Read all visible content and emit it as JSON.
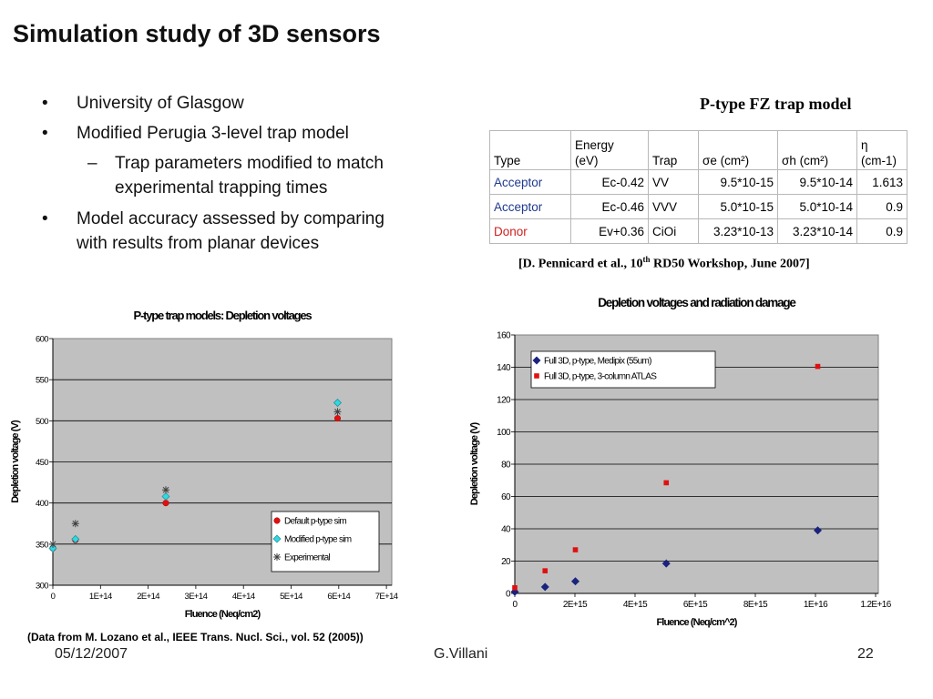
{
  "slide": {
    "title": "Simulation study of 3D sensors",
    "bullets": [
      {
        "marker": "•",
        "text": "University of Glasgow"
      },
      {
        "marker": "•",
        "text": "Modified Perugia 3-level trap model"
      },
      {
        "marker": "–",
        "text": "Trap parameters modified to match experimental trapping times",
        "level": 2
      },
      {
        "marker": "•",
        "text_lines": [
          "Model accuracy assessed by comparing",
          "with results from planar devices"
        ]
      }
    ],
    "data_note": "(Data from M. Lozano et al., IEEE Trans. Nucl. Sci., vol. 52 (2005))"
  },
  "trap_model": {
    "heading": "P-type FZ trap model",
    "headers": {
      "type": "Type",
      "energy_line1": "Energy",
      "energy_line2": "(eV)",
      "trap": "Trap",
      "sigma_e": "σe (cm²)",
      "sigma_h": "σh (cm²)",
      "eta_line1": "η",
      "eta_line2": "(cm-1)"
    },
    "rows": [
      {
        "type": "Acceptor",
        "type_color": "#1f3a8f",
        "energy": "Ec-0.42",
        "trap": "VV",
        "sigma_e": "9.5*10-15",
        "sigma_h": "9.5*10-14",
        "eta": "1.613"
      },
      {
        "type": "Acceptor",
        "type_color": "#1f3a8f",
        "energy": "Ec-0.46",
        "trap": "VVV",
        "sigma_e": "5.0*10-15",
        "sigma_h": "5.0*10-14",
        "eta": "0.9"
      },
      {
        "type": "Donor",
        "type_color": "#d02020",
        "energy": "Ev+0.36",
        "trap": "CiOi",
        "sigma_e": "3.23*10-13",
        "sigma_h": "3.23*10-14",
        "eta": "0.9"
      }
    ],
    "citation_pre": "[D. Pennicard et al., 10",
    "citation_sup": "th",
    "citation_post": " RD50 Workshop, June 2007]"
  },
  "footer": {
    "date": "05/12/2007",
    "author": "G.Villani",
    "page": "22"
  },
  "chart_data": [
    {
      "type": "scatter",
      "title": "P-type trap models: Depletion voltages",
      "xlabel": "Fluence (Neq/cm2)",
      "ylabel": "Depletion voltage (V)",
      "xlim": [
        0,
        750000000000000.0
      ],
      "ylim": [
        300,
        600
      ],
      "xticks": [
        "0",
        "1E+14",
        "2E+14",
        "3E+14",
        "4E+14",
        "5E+14",
        "6E+14",
        "7E+14"
      ],
      "yticks": [
        "300",
        "350",
        "400",
        "450",
        "500",
        "550",
        "600"
      ],
      "grid": true,
      "legend_position": "bottom-right",
      "series": [
        {
          "name": "Default p-type sim",
          "color": "#e01010",
          "marker": "circle",
          "x": [
            0,
            50000000000000.0,
            250000000000000.0,
            630000000000000.0
          ],
          "y": [
            345,
            355,
            400,
            503
          ]
        },
        {
          "name": "Modified p-type sim",
          "color": "#30d8e0",
          "marker": "diamond",
          "x": [
            0,
            50000000000000.0,
            250000000000000.0,
            630000000000000.0
          ],
          "y": [
            345,
            356,
            408,
            522
          ]
        },
        {
          "name": "Experimental",
          "color": "#404040",
          "marker": "star",
          "x": [
            0,
            50000000000000.0,
            250000000000000.0,
            630000000000000.0
          ],
          "y": [
            350,
            375,
            416,
            511
          ]
        }
      ]
    },
    {
      "type": "scatter",
      "title": "Depletion voltages and radiation damage",
      "xlabel": "Fluence (Neq/cm^2)",
      "ylabel": "Depletion voltage (V)",
      "xlim": [
        0,
        1.2e+16
      ],
      "ylim": [
        0,
        160
      ],
      "xticks": [
        "0",
        "2E+15",
        "4E+15",
        "6E+15",
        "8E+15",
        "1E+16",
        "1.2E+16"
      ],
      "yticks": [
        "0",
        "20",
        "40",
        "60",
        "80",
        "100",
        "120",
        "140",
        "160"
      ],
      "grid": true,
      "legend_position": "top-left",
      "series": [
        {
          "name": "Full 3D, p-type, Medipix (55um)",
          "color": "#1a237e",
          "marker": "diamond",
          "x": [
            0,
            1000000000000000.0,
            2000000000000000.0,
            5000000000000000.0,
            1e+16
          ],
          "y": [
            1,
            4,
            7.5,
            18.5,
            39
          ]
        },
        {
          "name": "Full 3D, p-type, 3-column ATLAS",
          "color": "#e01010",
          "marker": "square",
          "x": [
            0,
            1000000000000000.0,
            2000000000000000.0,
            5000000000000000.0,
            1e+16
          ],
          "y": [
            3.5,
            14,
            27,
            68.5,
            140.5
          ]
        }
      ]
    }
  ]
}
